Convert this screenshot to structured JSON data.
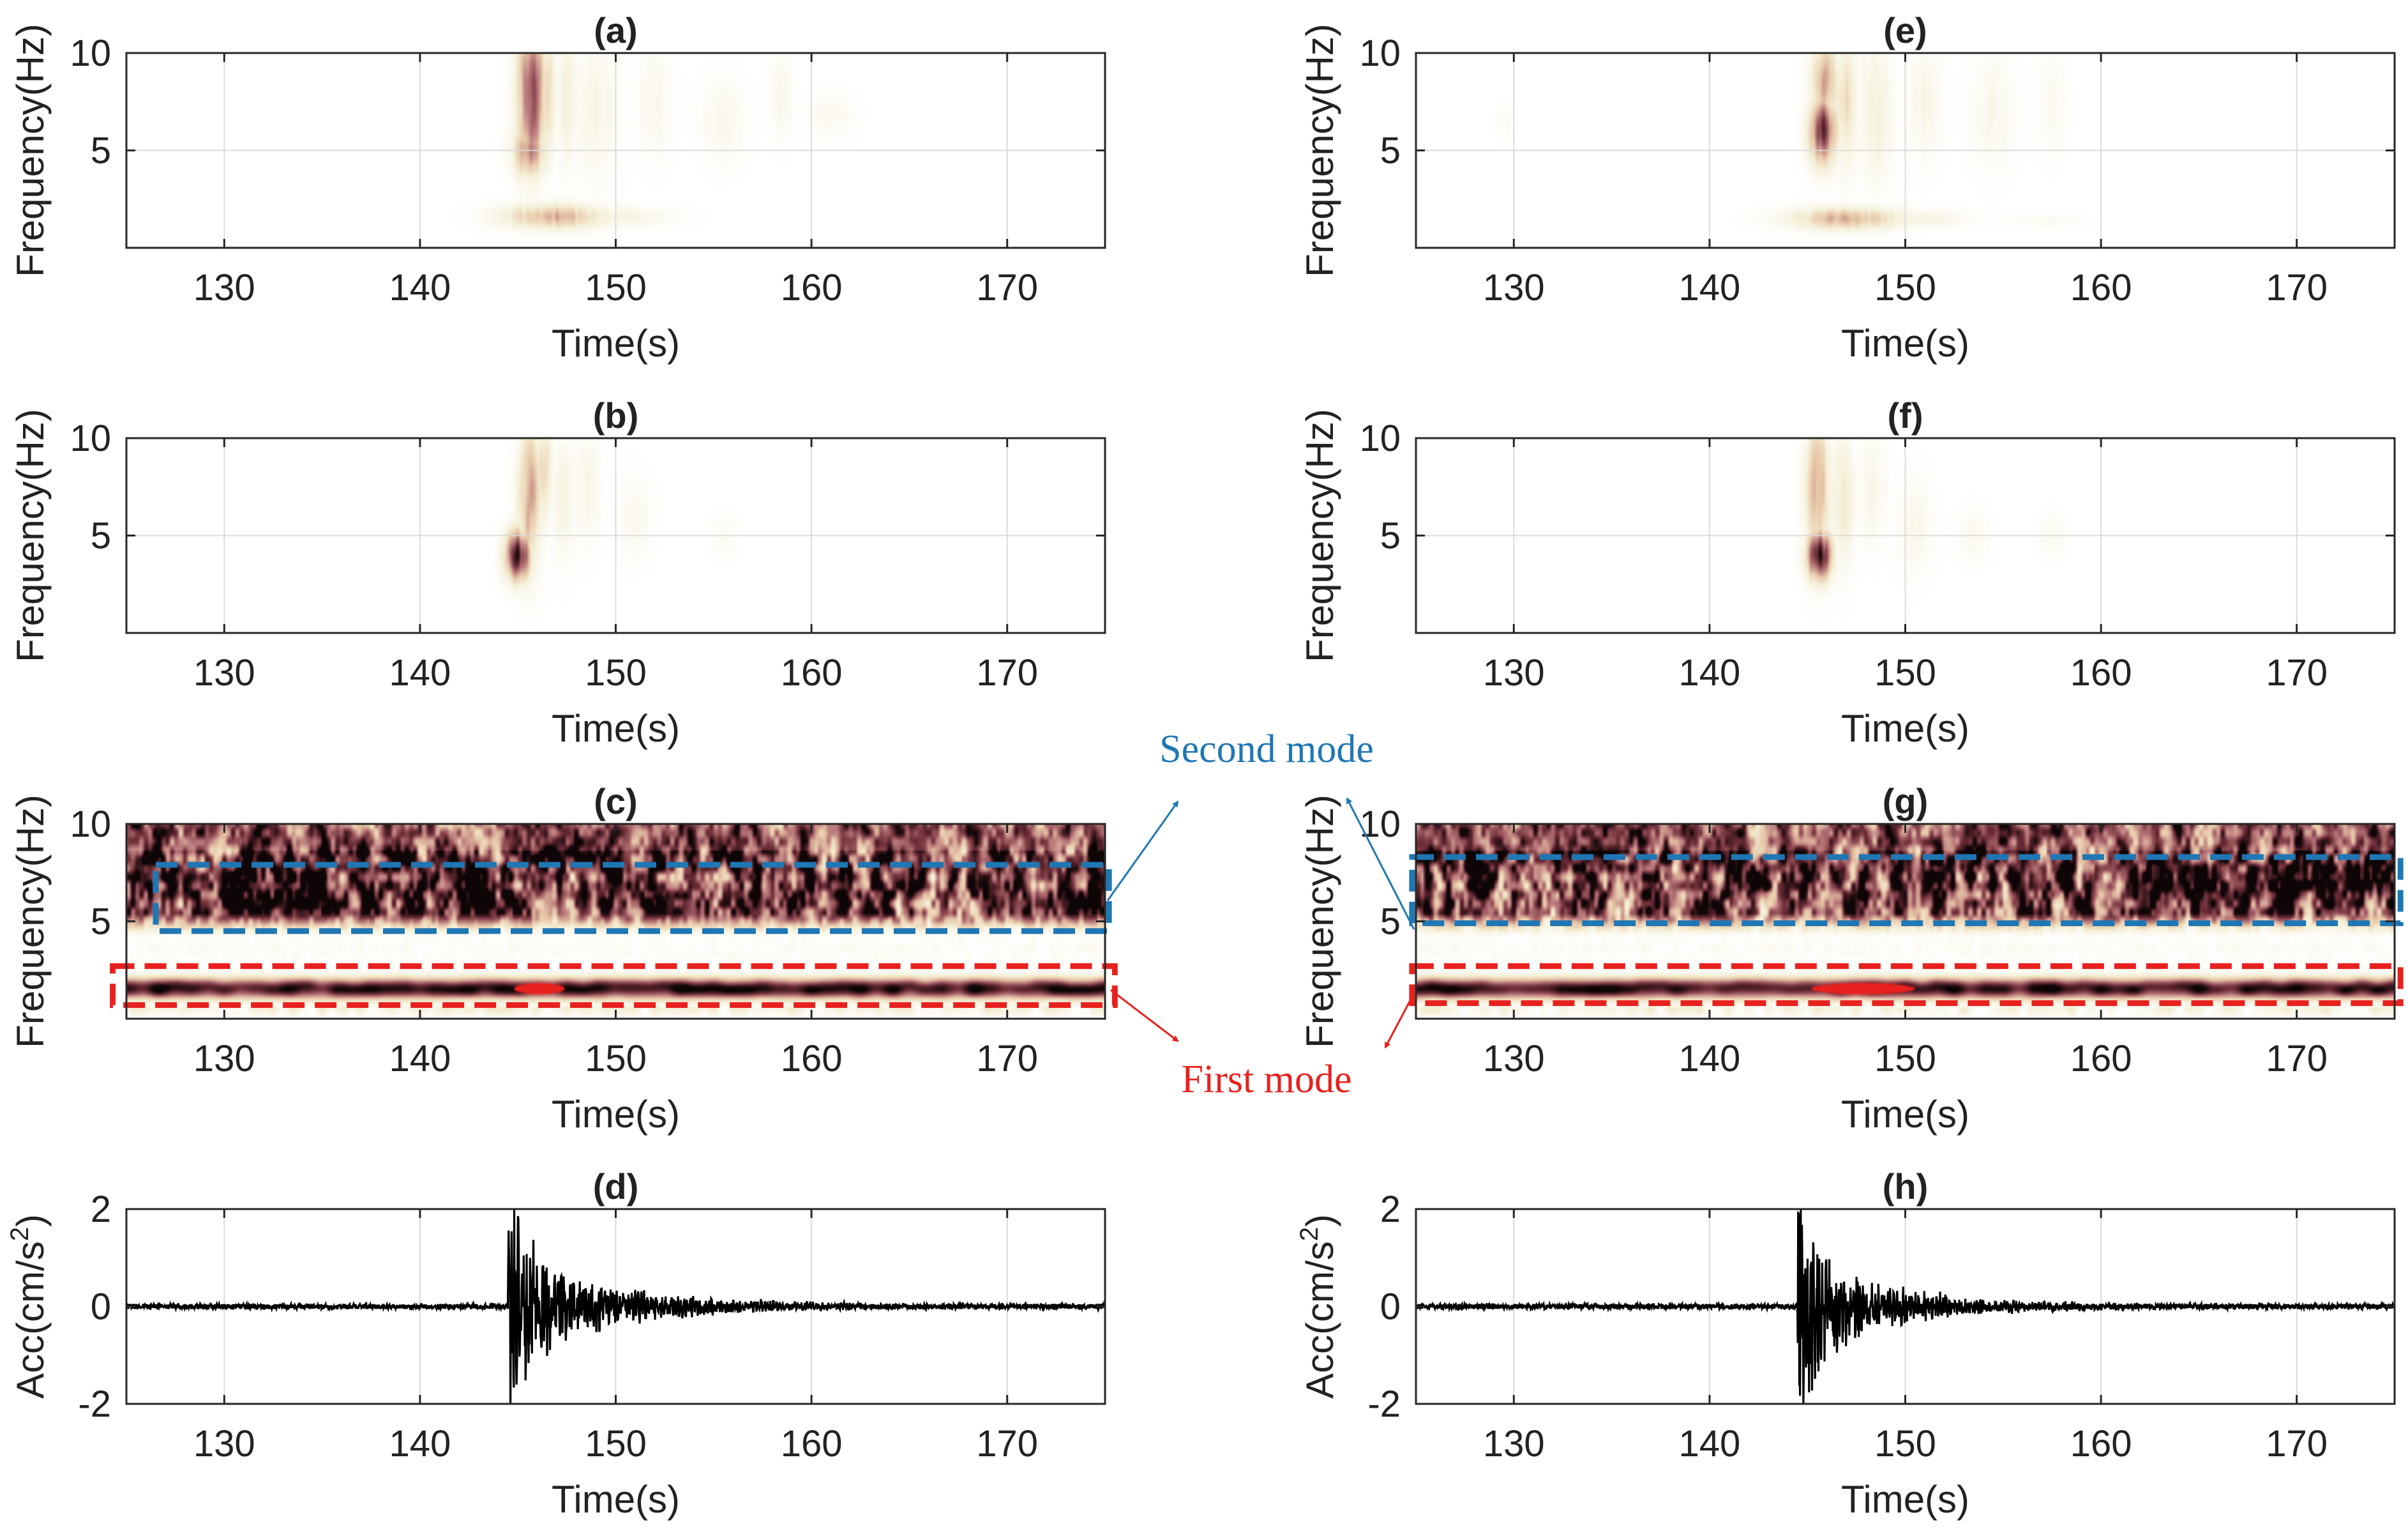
{
  "chart_data": [
    {
      "panel": "a",
      "type": "heatmap",
      "title": "(a)",
      "xlabel": "Time(s)",
      "ylabel": "Frequency(Hz)",
      "xlim": [
        125,
        175
      ],
      "ylim": [
        0,
        10
      ],
      "xticks": [
        130,
        140,
        150,
        160,
        170
      ],
      "yticks": [
        5,
        10
      ],
      "grid": true,
      "blobs": [
        {
          "t": 145.7,
          "f": 7.8,
          "dt": 0.5,
          "df": 2.4,
          "v": 0.75
        },
        {
          "t": 145.6,
          "f": 5.0,
          "dt": 0.6,
          "df": 1.0,
          "v": 0.5
        },
        {
          "t": 146.5,
          "f": 8.0,
          "dt": 0.3,
          "df": 2.0,
          "v": 0.35
        },
        {
          "t": 147.5,
          "f": 7.5,
          "dt": 0.4,
          "df": 2.2,
          "v": 0.18
        },
        {
          "t": 149.0,
          "f": 7.0,
          "dt": 0.8,
          "df": 2.5,
          "v": 0.12
        },
        {
          "t": 152.0,
          "f": 7.5,
          "dt": 0.6,
          "df": 2.0,
          "v": 0.1
        },
        {
          "t": 155.5,
          "f": 6.5,
          "dt": 0.8,
          "df": 1.5,
          "v": 0.1
        },
        {
          "t": 158.5,
          "f": 8.0,
          "dt": 0.4,
          "df": 1.8,
          "v": 0.09
        },
        {
          "t": 161.0,
          "f": 6.8,
          "dt": 0.8,
          "df": 0.8,
          "v": 0.08
        },
        {
          "t": 146.8,
          "f": 1.6,
          "dt": 1.8,
          "df": 0.45,
          "v": 0.45
        },
        {
          "t": 150.0,
          "f": 1.6,
          "dt": 2.0,
          "df": 0.35,
          "v": 0.15
        }
      ]
    },
    {
      "panel": "b",
      "type": "heatmap",
      "title": "(b)",
      "xlabel": "Time(s)",
      "ylabel": "Frequency(Hz)",
      "xlim": [
        125,
        175
      ],
      "ylim": [
        0,
        10
      ],
      "xticks": [
        130,
        140,
        150,
        160,
        170
      ],
      "yticks": [
        5,
        10
      ],
      "grid": true,
      "blobs": [
        {
          "t": 145.0,
          "f": 4.0,
          "dt": 0.45,
          "df": 0.9,
          "v": 0.9
        },
        {
          "t": 145.6,
          "f": 7.0,
          "dt": 0.4,
          "df": 2.5,
          "v": 0.5
        },
        {
          "t": 146.3,
          "f": 8.5,
          "dt": 0.3,
          "df": 1.8,
          "v": 0.3
        },
        {
          "t": 147.3,
          "f": 7.0,
          "dt": 0.4,
          "df": 2.2,
          "v": 0.15
        },
        {
          "t": 148.5,
          "f": 7.5,
          "dt": 0.5,
          "df": 2.0,
          "v": 0.12
        },
        {
          "t": 151.0,
          "f": 6.0,
          "dt": 0.6,
          "df": 1.5,
          "v": 0.08
        },
        {
          "t": 155.5,
          "f": 5.0,
          "dt": 0.5,
          "df": 0.8,
          "v": 0.06
        }
      ]
    },
    {
      "panel": "c",
      "type": "heatmap",
      "title": "(c)",
      "xlabel": "Time(s)",
      "ylabel": "Frequency(Hz)",
      "xlim": [
        125,
        175
      ],
      "ylim": [
        0,
        10
      ],
      "xticks": [
        130,
        140,
        150,
        160,
        170
      ],
      "yticks": [
        5,
        10
      ],
      "grid": true,
      "dense": true,
      "boxes": [
        {
          "mode": "second",
          "t0": 126.5,
          "t1": 175.2,
          "f0": 4.5,
          "f1": 7.9
        },
        {
          "mode": "first",
          "t0": 124.3,
          "t1": 175.5,
          "f0": 0.7,
          "f1": 2.7
        }
      ]
    },
    {
      "panel": "d",
      "type": "line",
      "title": "(d)",
      "xlabel": "Time(s)",
      "ylabel_main": "Acc(cm/s",
      "ylabel_sup": "2",
      "ylabel_end": ")",
      "xlim": [
        125,
        175
      ],
      "ylim": [
        -2,
        2
      ],
      "xticks": [
        130,
        140,
        150,
        160,
        170
      ],
      "yticks": [
        -2,
        0,
        2
      ],
      "grid": true,
      "onset": 144.5,
      "peak": 2.0,
      "decay": 5.5,
      "noise": 0.05
    },
    {
      "panel": "e",
      "type": "heatmap",
      "title": "(e)",
      "xlabel": "Time(s)",
      "ylabel": "Frequency(Hz)",
      "xlim": [
        125,
        175
      ],
      "ylim": [
        0,
        10
      ],
      "xticks": [
        130,
        140,
        150,
        160,
        170
      ],
      "yticks": [
        5,
        10
      ],
      "grid": true,
      "blobs": [
        {
          "t": 145.8,
          "f": 6.0,
          "dt": 0.5,
          "df": 1.2,
          "v": 0.8
        },
        {
          "t": 145.9,
          "f": 8.5,
          "dt": 0.5,
          "df": 1.5,
          "v": 0.45
        },
        {
          "t": 147.0,
          "f": 7.5,
          "dt": 0.4,
          "df": 2.3,
          "v": 0.3
        },
        {
          "t": 148.5,
          "f": 7.0,
          "dt": 0.6,
          "df": 2.5,
          "v": 0.18
        },
        {
          "t": 151.0,
          "f": 7.5,
          "dt": 0.6,
          "df": 2.0,
          "v": 0.12
        },
        {
          "t": 154.5,
          "f": 7.0,
          "dt": 0.8,
          "df": 2.0,
          "v": 0.1
        },
        {
          "t": 157.5,
          "f": 7.5,
          "dt": 0.5,
          "df": 1.8,
          "v": 0.08
        },
        {
          "t": 129.5,
          "f": 6.5,
          "dt": 0.25,
          "df": 0.6,
          "v": 0.06
        },
        {
          "t": 147.0,
          "f": 1.5,
          "dt": 2.0,
          "df": 0.4,
          "v": 0.45
        },
        {
          "t": 150.5,
          "f": 1.5,
          "dt": 1.8,
          "df": 0.3,
          "v": 0.15
        },
        {
          "t": 157.0,
          "f": 1.4,
          "dt": 1.5,
          "df": 0.25,
          "v": 0.06
        }
      ]
    },
    {
      "panel": "f",
      "type": "heatmap",
      "title": "(f)",
      "xlabel": "Time(s)",
      "ylabel": "Frequency(Hz)",
      "xlim": [
        125,
        175
      ],
      "ylim": [
        0,
        10
      ],
      "xticks": [
        130,
        140,
        150,
        160,
        170
      ],
      "yticks": [
        5,
        10
      ],
      "grid": true,
      "blobs": [
        {
          "t": 145.6,
          "f": 4.0,
          "dt": 0.45,
          "df": 0.9,
          "v": 0.9
        },
        {
          "t": 145.5,
          "f": 7.5,
          "dt": 0.45,
          "df": 2.5,
          "v": 0.45
        },
        {
          "t": 146.8,
          "f": 7.0,
          "dt": 0.4,
          "df": 2.3,
          "v": 0.25
        },
        {
          "t": 148.3,
          "f": 7.5,
          "dt": 0.5,
          "df": 2.0,
          "v": 0.12
        },
        {
          "t": 150.5,
          "f": 5.5,
          "dt": 0.6,
          "df": 1.8,
          "v": 0.1
        },
        {
          "t": 153.5,
          "f": 5.0,
          "dt": 0.6,
          "df": 1.0,
          "v": 0.07
        },
        {
          "t": 157.5,
          "f": 5.0,
          "dt": 0.5,
          "df": 0.8,
          "v": 0.06
        }
      ]
    },
    {
      "panel": "g",
      "type": "heatmap",
      "title": "(g)",
      "xlabel": "Time(s)",
      "ylabel": "Frequency(Hz)",
      "xlim": [
        125,
        175
      ],
      "ylim": [
        0,
        10
      ],
      "xticks": [
        130,
        140,
        150,
        160,
        170
      ],
      "yticks": [
        5,
        10
      ],
      "grid": true,
      "dense": true,
      "boxes": [
        {
          "mode": "second",
          "t0": 124.8,
          "t1": 175.3,
          "f0": 4.9,
          "f1": 8.3
        },
        {
          "mode": "first",
          "t0": 124.8,
          "t1": 175.3,
          "f0": 0.8,
          "f1": 2.7
        }
      ]
    },
    {
      "panel": "h",
      "type": "line",
      "title": "(h)",
      "xlabel": "Time(s)",
      "ylabel_main": "Acc(cm/s",
      "ylabel_sup": "2",
      "ylabel_end": ")",
      "xlim": [
        125,
        175
      ],
      "ylim": [
        -2,
        2
      ],
      "xticks": [
        130,
        140,
        150,
        160,
        170
      ],
      "yticks": [
        -2,
        0,
        2
      ],
      "grid": true,
      "onset": 144.5,
      "peak": 2.0,
      "decay": 5.0,
      "noise": 0.05
    }
  ],
  "annotations": {
    "second_mode": "Second mode",
    "first_mode": "First mode",
    "second_color": "#1f77b4",
    "first_color": "#e8211e"
  },
  "colors": {
    "grid": "#d9d9d9",
    "axis": "#262626",
    "signal": "#000000",
    "cmap": [
      "#ffffff",
      "#f5f0d8",
      "#e8c9a9",
      "#b9787a",
      "#6e2e38",
      "#0d0506"
    ]
  }
}
